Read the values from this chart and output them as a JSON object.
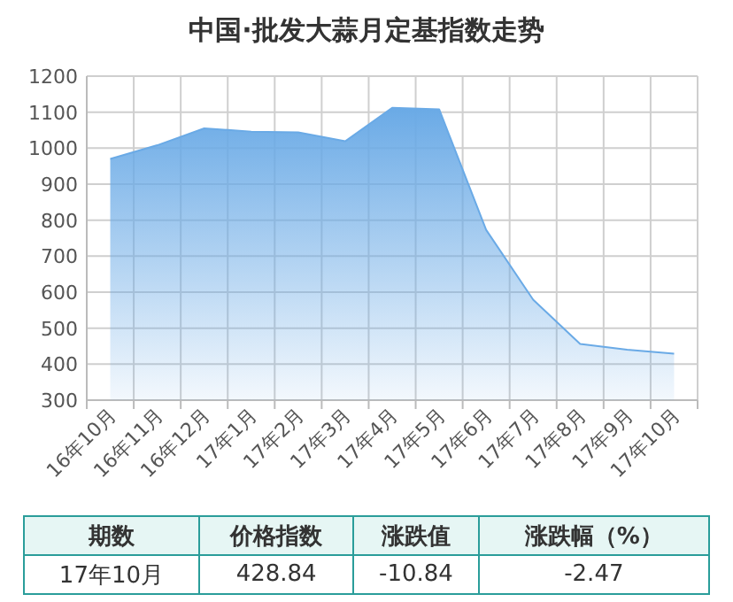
{
  "chart_data": {
    "type": "area",
    "title": "中国·批发大蒜月定基指数走势",
    "categories": [
      "16年10月",
      "16年11月",
      "16年12月",
      "17年1月",
      "17年2月",
      "17年3月",
      "17年4月",
      "17年5月",
      "17年6月",
      "17年7月",
      "17年8月",
      "17年9月",
      "17年10月"
    ],
    "series": [
      {
        "color": "#6aaae6",
        "values": [
          970,
          1008,
          1055,
          1046,
          1044,
          1019,
          1112,
          1108,
          773,
          579,
          456,
          440,
          428.84
        ]
      }
    ],
    "ylim": [
      300,
      1200
    ],
    "yticks": [
      300,
      400,
      500,
      600,
      700,
      800,
      900,
      1000,
      1100,
      1200
    ],
    "grid": true,
    "annotations": [
      "期数",
      "价格指数",
      "涨跌值",
      "涨跌幅（%）",
      "17年10月",
      "428.84",
      "-10.84",
      "-2.47"
    ]
  }
}
